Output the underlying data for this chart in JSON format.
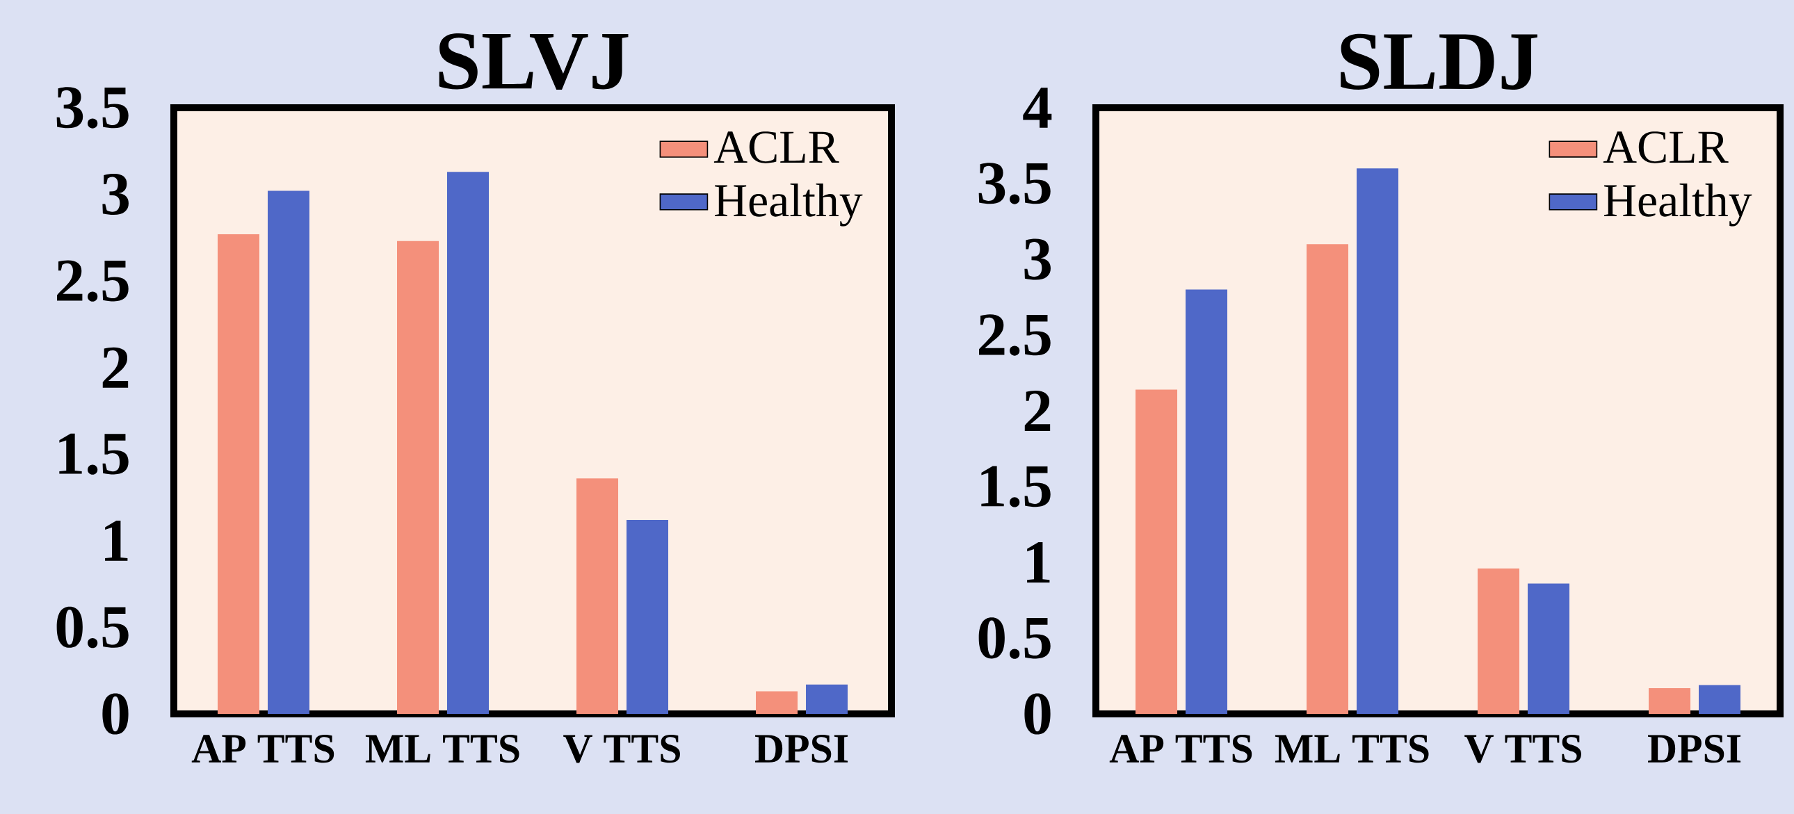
{
  "chart_data": [
    {
      "type": "bar",
      "title": "SLVJ",
      "categories": [
        "AP  TTS",
        "ML  TTS",
        "V  TTS",
        "DPSI"
      ],
      "series": [
        {
          "name": "ACLR",
          "color": "#f4907b",
          "values": [
            2.77,
            2.73,
            1.36,
            0.13
          ]
        },
        {
          "name": "Healthy",
          "color": "#4f68c8",
          "values": [
            3.02,
            3.13,
            1.12,
            0.17
          ]
        }
      ],
      "ylim": [
        0,
        3.5
      ],
      "yticks": [
        0,
        0.5,
        1,
        1.5,
        2,
        2.5,
        3,
        3.5
      ],
      "legend": "top right"
    },
    {
      "type": "bar",
      "title": "SLDJ",
      "categories": [
        "AP  TTS",
        "ML  TTS",
        "V  TTS",
        "DPSI"
      ],
      "series": [
        {
          "name": "ACLR",
          "color": "#f4907b",
          "values": [
            2.14,
            3.1,
            0.96,
            0.17
          ]
        },
        {
          "name": "Healthy",
          "color": "#4f68c8",
          "values": [
            2.8,
            3.6,
            0.86,
            0.19
          ]
        }
      ],
      "ylim": [
        0,
        4
      ],
      "yticks": [
        0,
        0.5,
        1,
        1.5,
        2,
        2.5,
        3,
        3.5,
        4
      ],
      "legend": "top right"
    }
  ]
}
